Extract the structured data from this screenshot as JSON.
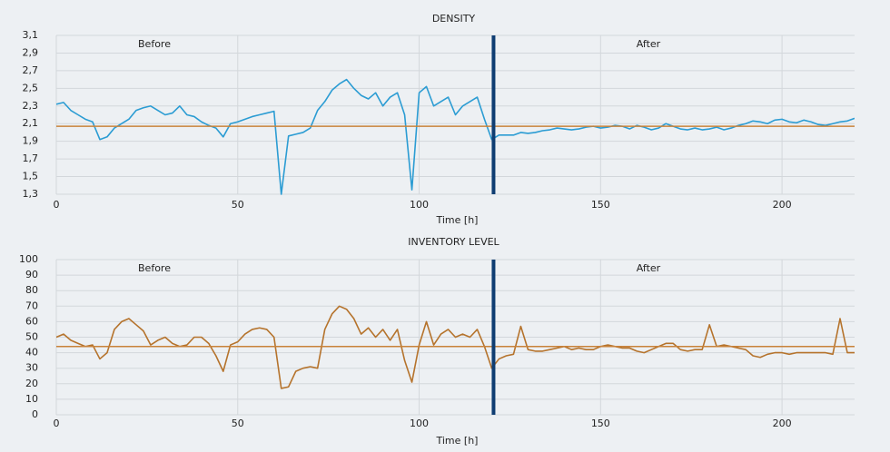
{
  "chart_data": [
    {
      "type": "line",
      "title": "DENSITY",
      "xlabel": "Time [h]",
      "color": "#2b9cd3",
      "annotations": [
        "Before",
        "After"
      ],
      "hline": {
        "value": 2.07,
        "color": "#c8823a"
      },
      "vline": {
        "value": 120.5,
        "color": "#0f3d72"
      },
      "xlim": [
        0,
        220
      ],
      "xticks": [
        0,
        50,
        100,
        150,
        200
      ],
      "ylim": [
        1.3,
        3.1
      ],
      "yticks": [
        {
          "value": 1.3,
          "label": "1,3"
        },
        {
          "value": 1.5,
          "label": "1,5"
        },
        {
          "value": 1.7,
          "label": "1,7"
        },
        {
          "value": 1.9,
          "label": "1,9"
        },
        {
          "value": 2.1,
          "label": "2,1"
        },
        {
          "value": 2.3,
          "label": "2,3"
        },
        {
          "value": 2.5,
          "label": "2,5"
        },
        {
          "value": 2.7,
          "label": "2,7"
        },
        {
          "value": 2.9,
          "label": "2,9"
        },
        {
          "value": 3.1,
          "label": "3,1"
        }
      ],
      "grid": true,
      "x": [
        0,
        2,
        4,
        6,
        8,
        10,
        12,
        14,
        16,
        18,
        20,
        22,
        24,
        26,
        28,
        30,
        32,
        34,
        36,
        38,
        40,
        42,
        44,
        46,
        48,
        50,
        52,
        54,
        56,
        58,
        60,
        62,
        64,
        66,
        68,
        70,
        72,
        74,
        76,
        78,
        80,
        82,
        84,
        86,
        88,
        90,
        92,
        94,
        96,
        98,
        100,
        102,
        104,
        106,
        108,
        110,
        112,
        114,
        116,
        118,
        120,
        122,
        124,
        126,
        128,
        130,
        132,
        134,
        136,
        138,
        140,
        142,
        144,
        146,
        148,
        150,
        152,
        154,
        156,
        158,
        160,
        162,
        164,
        166,
        168,
        170,
        172,
        174,
        176,
        178,
        180,
        182,
        184,
        186,
        188,
        190,
        192,
        194,
        196,
        198,
        200,
        202,
        204,
        206,
        208,
        210,
        212,
        214,
        216,
        218,
        220
      ],
      "values": [
        2.32,
        2.34,
        2.25,
        2.2,
        2.15,
        2.12,
        1.92,
        1.95,
        2.05,
        2.1,
        2.15,
        2.25,
        2.28,
        2.3,
        2.25,
        2.2,
        2.22,
        2.3,
        2.2,
        2.18,
        2.12,
        2.08,
        2.05,
        1.95,
        2.1,
        2.12,
        2.15,
        2.18,
        2.2,
        2.22,
        2.24,
        1.3,
        1.96,
        1.98,
        2.0,
        2.05,
        2.25,
        2.35,
        2.48,
        2.55,
        2.6,
        2.5,
        2.42,
        2.38,
        2.45,
        2.3,
        2.4,
        2.45,
        2.2,
        1.35,
        2.45,
        2.52,
        2.3,
        2.35,
        2.4,
        2.2,
        2.3,
        2.35,
        2.4,
        2.15,
        1.92,
        1.97,
        1.97,
        1.97,
        2.0,
        1.99,
        2.0,
        2.02,
        2.03,
        2.05,
        2.04,
        2.03,
        2.04,
        2.06,
        2.07,
        2.05,
        2.06,
        2.08,
        2.07,
        2.04,
        2.08,
        2.06,
        2.03,
        2.05,
        2.1,
        2.07,
        2.04,
        2.03,
        2.05,
        2.03,
        2.04,
        2.06,
        2.03,
        2.05,
        2.08,
        2.1,
        2.13,
        2.12,
        2.1,
        2.14,
        2.15,
        2.12,
        2.11,
        2.14,
        2.12,
        2.09,
        2.08,
        2.1,
        2.12,
        2.13,
        2.16
      ]
    },
    {
      "type": "line",
      "title": "INVENTORY LEVEL",
      "xlabel": "Time [h]",
      "color": "#b5732c",
      "annotations": [
        "Before",
        "After"
      ],
      "hline": {
        "value": 44,
        "color": "#c8823a"
      },
      "vline": {
        "value": 120.5,
        "color": "#0f3d72"
      },
      "xlim": [
        0,
        220
      ],
      "xticks": [
        0,
        50,
        100,
        150,
        200
      ],
      "ylim": [
        0,
        100
      ],
      "yticks": [
        0,
        10,
        20,
        30,
        40,
        50,
        60,
        70,
        80,
        90,
        100
      ],
      "grid": true,
      "x": [
        0,
        2,
        4,
        6,
        8,
        10,
        12,
        14,
        16,
        18,
        20,
        22,
        24,
        26,
        28,
        30,
        32,
        34,
        36,
        38,
        40,
        42,
        44,
        46,
        48,
        50,
        52,
        54,
        56,
        58,
        60,
        62,
        64,
        66,
        68,
        70,
        72,
        74,
        76,
        78,
        80,
        82,
        84,
        86,
        88,
        90,
        92,
        94,
        96,
        98,
        100,
        102,
        104,
        106,
        108,
        110,
        112,
        114,
        116,
        118,
        120,
        122,
        124,
        126,
        128,
        130,
        132,
        134,
        136,
        138,
        140,
        142,
        144,
        146,
        148,
        150,
        152,
        154,
        156,
        158,
        160,
        162,
        164,
        166,
        168,
        170,
        172,
        174,
        176,
        178,
        180,
        182,
        184,
        186,
        188,
        190,
        192,
        194,
        196,
        198,
        200,
        202,
        204,
        206,
        208,
        210,
        212,
        214,
        216,
        218,
        220
      ],
      "values": [
        50,
        52,
        48,
        46,
        44,
        45,
        36,
        40,
        55,
        60,
        62,
        58,
        54,
        45,
        48,
        50,
        46,
        44,
        45,
        50,
        50,
        46,
        38,
        28,
        45,
        47,
        52,
        55,
        56,
        55,
        50,
        17,
        18,
        28,
        30,
        31,
        30,
        55,
        65,
        70,
        68,
        62,
        52,
        56,
        50,
        55,
        48,
        55,
        35,
        21,
        45,
        60,
        45,
        52,
        55,
        50,
        52,
        50,
        55,
        44,
        30,
        36,
        38,
        39,
        57,
        42,
        41,
        41,
        42,
        43,
        44,
        42,
        43,
        42,
        42,
        44,
        45,
        44,
        43,
        43,
        41,
        40,
        42,
        44,
        46,
        46,
        42,
        41,
        42,
        42,
        58,
        44,
        45,
        44,
        43,
        42,
        38,
        37,
        39,
        40,
        40,
        39,
        40,
        40,
        40,
        40,
        40,
        39,
        62,
        40,
        40
      ]
    }
  ]
}
